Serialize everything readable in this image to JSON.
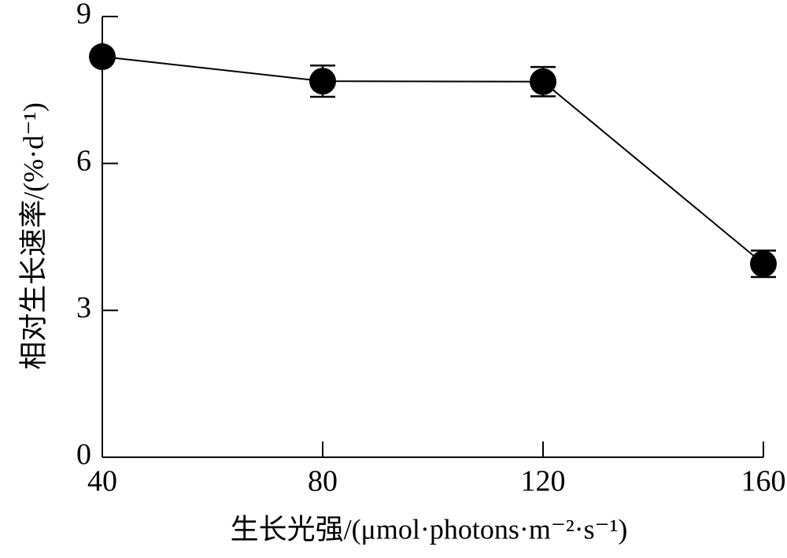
{
  "chart_data": {
    "type": "line",
    "x_label": "生长光强/(μmol·photons·m⁻²·s⁻¹)",
    "y_label": "相对生长速率/(%·d⁻¹)",
    "x": [
      40,
      80,
      120,
      160
    ],
    "series": [
      {
        "color": "#000000",
        "values": [
          8.18,
          7.68,
          7.67,
          3.95
        ],
        "errors": [
          0,
          0.32,
          0.3,
          0.27
        ]
      }
    ],
    "xlim": [
      40,
      160
    ],
    "xticks": [
      40,
      80,
      120,
      160
    ],
    "ylim": [
      0,
      9
    ],
    "yticks": [
      0,
      3,
      6,
      9
    ]
  }
}
